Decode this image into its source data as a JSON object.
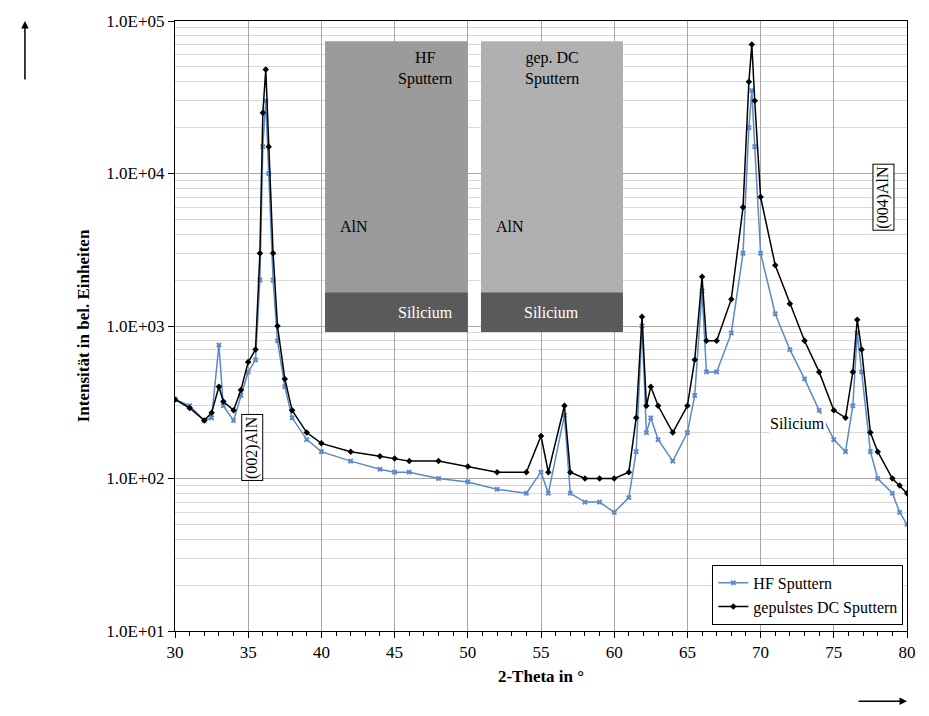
{
  "chart_data": {
    "type": "line",
    "x_label": "2-Theta in °",
    "y_label": "Intensität in bel. Einheiten",
    "log": "y",
    "grid": true,
    "legend": "bottom right",
    "xlim": [
      30,
      80
    ],
    "xticks": [
      30,
      35,
      40,
      45,
      50,
      55,
      60,
      65,
      70,
      75,
      80
    ],
    "ylim": [
      10,
      100000
    ],
    "yticks": [
      {
        "value": 10,
        "label": "1.0E+01"
      },
      {
        "value": 100,
        "label": "1.0E+02"
      },
      {
        "value": 1000,
        "label": "1.0E+03"
      },
      {
        "value": 10000,
        "label": "1.0E+04"
      },
      {
        "value": 100000,
        "label": "1.0E+05"
      }
    ],
    "x": [
      30,
      31,
      32,
      32.5,
      33,
      33.3,
      34,
      34.5,
      35,
      35.5,
      35.8,
      36.0,
      36.2,
      36.4,
      36.7,
      37,
      37.5,
      38,
      39,
      40,
      42,
      44,
      45,
      46,
      48,
      50,
      52,
      54,
      55,
      55.5,
      56.6,
      57,
      58,
      59,
      60,
      61,
      61.5,
      61.9,
      62.2,
      62.5,
      63,
      64,
      65,
      65.5,
      66,
      66.3,
      67,
      68,
      68.8,
      69.2,
      69.4,
      69.6,
      70,
      71,
      72,
      73,
      74,
      75,
      75.8,
      76.3,
      76.6,
      76.9,
      77.5,
      78,
      79,
      79.5,
      80
    ],
    "series": [
      {
        "name": "HF Sputtern",
        "color": "#5b8ac6",
        "marker": "x",
        "values": [
          330,
          300,
          240,
          250,
          750,
          300,
          240,
          350,
          500,
          600,
          2000,
          15000,
          30000,
          10000,
          2000,
          800,
          400,
          250,
          180,
          150,
          130,
          115,
          110,
          110,
          100,
          95,
          85,
          80,
          110,
          80,
          260,
          80,
          70,
          70,
          60,
          75,
          150,
          1000,
          200,
          250,
          180,
          130,
          200,
          350,
          1700,
          500,
          500,
          900,
          3000,
          20000,
          35000,
          15000,
          3000,
          1200,
          700,
          450,
          280,
          180,
          150,
          300,
          900,
          500,
          150,
          100,
          80,
          60,
          50
        ]
      },
      {
        "name": "gepulstes DC Sputtern",
        "color": "#000000",
        "marker": "diamond",
        "values": [
          330,
          290,
          240,
          270,
          400,
          320,
          280,
          380,
          580,
          700,
          3000,
          25000,
          48000,
          15000,
          3000,
          1000,
          450,
          280,
          200,
          170,
          150,
          140,
          135,
          130,
          130,
          120,
          110,
          110,
          190,
          110,
          300,
          110,
          100,
          100,
          100,
          110,
          250,
          1150,
          300,
          400,
          300,
          200,
          300,
          600,
          2100,
          800,
          800,
          1500,
          6000,
          40000,
          70000,
          30000,
          7000,
          2500,
          1400,
          800,
          500,
          280,
          250,
          500,
          1100,
          700,
          200,
          150,
          100,
          90,
          80
        ]
      }
    ],
    "annotations": [
      "(002)AlN",
      "(004)AlN",
      "Silicium"
    ],
    "insets": [
      {
        "title": "HF Sputtern",
        "labels": [
          "AlN",
          "Silicium"
        ]
      },
      {
        "title": "gep. DC Sputtern",
        "labels": [
          "AlN",
          "Silicium"
        ]
      }
    ]
  }
}
